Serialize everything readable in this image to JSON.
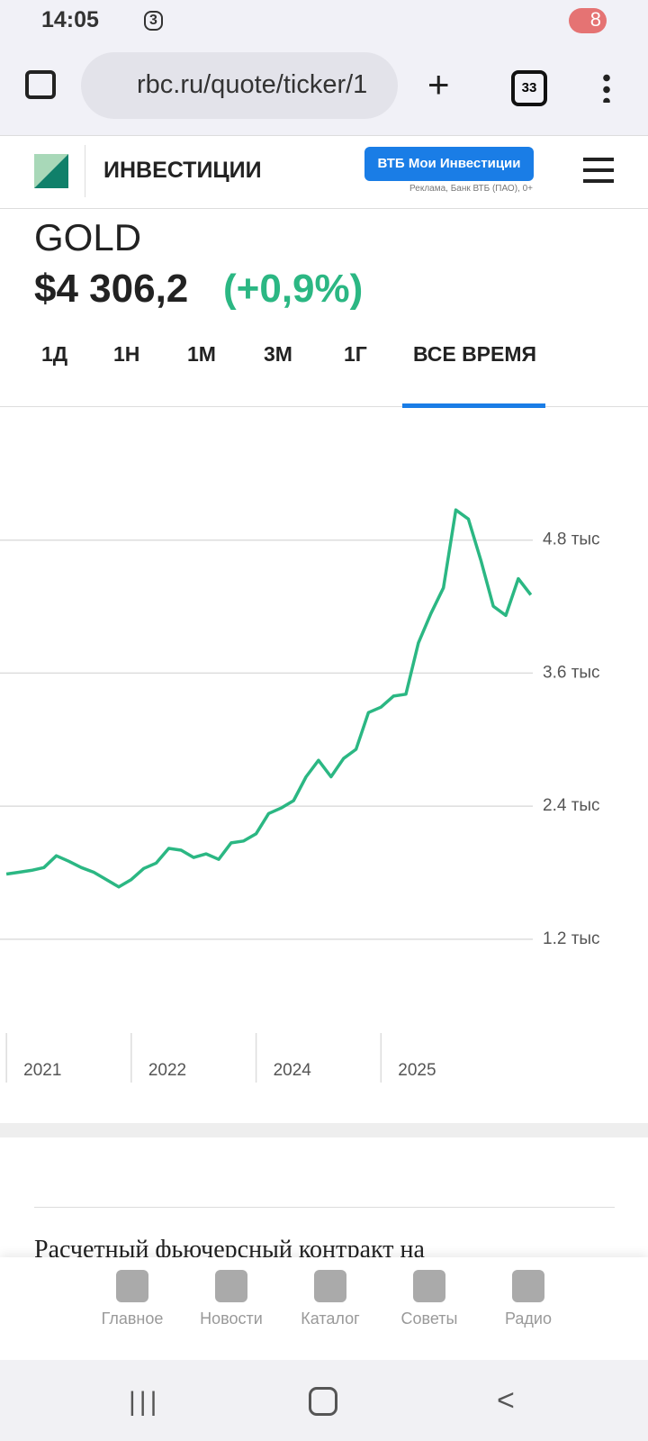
{
  "status_bar": {
    "time": "14:05",
    "battery": "8",
    "notification_badge": "3"
  },
  "browser": {
    "url": "rbc.ru/quote/ticker/1",
    "tabs": "33"
  },
  "header": {
    "title": "ИНВЕСТИЦИИ",
    "ad_button": "ВТБ Мои Инвестиции",
    "ad_note": "Реклама, Банк ВТБ (ПАО), 0+"
  },
  "quote": {
    "ticker": "GOLD",
    "price": "$4 306,2",
    "change": "(+0,9%)"
  },
  "periods": [
    "1Д",
    "1Н",
    "1М",
    "3М",
    "1Г",
    "ВСЕ ВРЕМЯ"
  ],
  "chart_data": {
    "type": "line",
    "color": "#2bb783",
    "grid": true,
    "categories": [
      "2021",
      null,
      null,
      null,
      null,
      null,
      null,
      null,
      null,
      null,
      "2022",
      null,
      null,
      null,
      null,
      null,
      null,
      null,
      null,
      null,
      "2024",
      null,
      null,
      null,
      null,
      null,
      null,
      null,
      null,
      null,
      "2025",
      null,
      null,
      null,
      null,
      null,
      null,
      null,
      null,
      null,
      null,
      null,
      null
    ],
    "values": [
      1788,
      1804,
      1821,
      1846,
      1953,
      1903,
      1846,
      1804,
      1738,
      1672,
      1738,
      1838,
      1887,
      2019,
      2003,
      1937,
      1970,
      1920,
      2069,
      2086,
      2152,
      2334,
      2383,
      2450,
      2665,
      2814,
      2665,
      2830,
      2913,
      3244,
      3293,
      3393,
      3410,
      3873,
      4138,
      4369,
      5072,
      4990,
      4618,
      4204,
      4121,
      4452,
      4306
    ],
    "ylim": [
      350,
      5860
    ],
    "yticks": [
      {
        "value": 1200,
        "label": "1.2 тыс"
      },
      {
        "value": 2400,
        "label": "2.4 тыс"
      },
      {
        "value": 3600,
        "label": "3.6 тыс"
      },
      {
        "value": 4800,
        "label": "4.8 тыс"
      }
    ]
  },
  "article": {
    "text": "Расчетный фьючерсный контракт на"
  },
  "bottom_nav": [
    "Главное",
    "Новости",
    "Каталог",
    "Советы",
    "Радио"
  ]
}
